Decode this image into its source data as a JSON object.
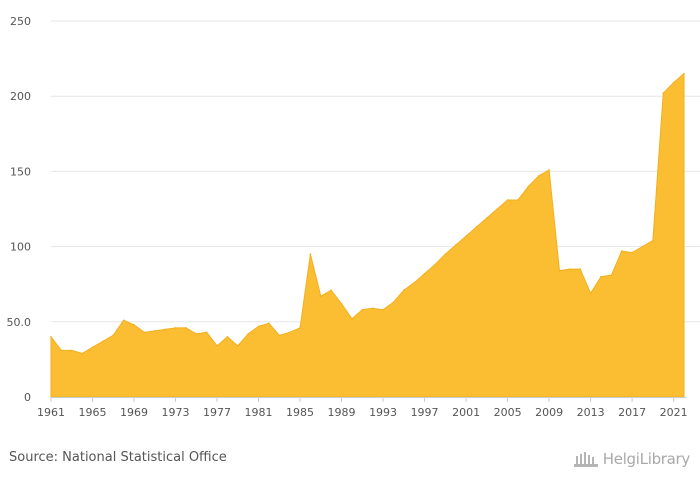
{
  "chart_data": {
    "type": "area",
    "x": [
      1961,
      1962,
      1963,
      1964,
      1965,
      1966,
      1967,
      1968,
      1969,
      1970,
      1971,
      1972,
      1973,
      1974,
      1975,
      1976,
      1977,
      1978,
      1979,
      1980,
      1981,
      1982,
      1983,
      1984,
      1985,
      1986,
      1987,
      1988,
      1989,
      1990,
      1991,
      1992,
      1993,
      1994,
      1995,
      1996,
      1997,
      1998,
      1999,
      2000,
      2001,
      2002,
      2003,
      2004,
      2005,
      2006,
      2007,
      2008,
      2009,
      2010,
      2011,
      2012,
      2013,
      2014,
      2015,
      2016,
      2017,
      2018,
      2019,
      2020,
      2021,
      2022
    ],
    "values": [
      40,
      31,
      31,
      29,
      33,
      37,
      41,
      51,
      48,
      43,
      44,
      45,
      46,
      46,
      42,
      43,
      34,
      40,
      34,
      42,
      47,
      49,
      41,
      43,
      46,
      95,
      67,
      71,
      62,
      52,
      58,
      59,
      58,
      63,
      71,
      76,
      82,
      88,
      95,
      101,
      107,
      113,
      119,
      125,
      131,
      131,
      140,
      147,
      151,
      84,
      85,
      85,
      69,
      80,
      81,
      97,
      96,
      100,
      104,
      202,
      209,
      215
    ],
    "x_ticks": [
      "1961",
      "1965",
      "1969",
      "1973",
      "1977",
      "1981",
      "1985",
      "1989",
      "1993",
      "1997",
      "2001",
      "2005",
      "2009",
      "2013",
      "2017",
      "2021"
    ],
    "y_ticks": [
      "0",
      "50.0",
      "100",
      "150",
      "200",
      "250"
    ],
    "ylim": [
      0,
      250
    ],
    "xlim": [
      1961,
      2022
    ],
    "grid": "horizontal",
    "colors": {
      "fill": "#fbbd32",
      "stroke": "#f2b01e",
      "grid": "#e6e6e6",
      "axis": "#cccccc",
      "text": "#555555"
    }
  },
  "footer": {
    "source": "Source: National Statistical Office",
    "brand": "HelgiLibrary"
  }
}
